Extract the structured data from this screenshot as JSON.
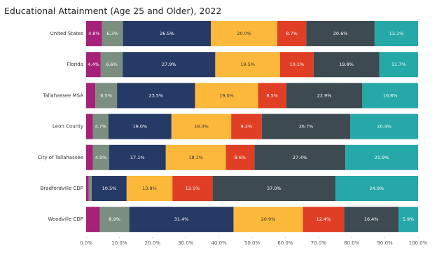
{
  "chart_data": {
    "type": "stacked-barh",
    "title": "Educational Attainment (Age 25 and Older), 2022",
    "categories": [
      "United States",
      "Florida",
      "Tallahassee MSA",
      "Leon County",
      "City of Tallahassee",
      "Bradfordville CDP",
      "Woodville CDP"
    ],
    "series": [
      {
        "color": "#a6217a",
        "values": [
          4.8,
          4.4,
          2.8,
          2.0,
          2.0,
          0.8,
          4.1
        ],
        "value_labels": [
          "4.8%",
          "4.4%",
          null,
          null,
          null,
          null,
          null
        ]
      },
      {
        "color": "#7b8f81",
        "values": [
          6.3,
          6.6,
          6.5,
          4.7,
          4.9,
          0.9,
          8.9
        ],
        "value_labels": [
          "6.3%",
          "6.6%",
          "6.5%",
          "4.7%",
          "4.9%",
          null,
          "8.9%"
        ]
      },
      {
        "color": "#263a66",
        "values": [
          26.5,
          27.9,
          23.5,
          19.0,
          17.1,
          10.5,
          31.4
        ],
        "value_labels": [
          "26.5%",
          "27.9%",
          "23.5%",
          "19.0%",
          "17.1%",
          "10.5%",
          "31.4%"
        ]
      },
      {
        "color": "#fbb83a",
        "values": [
          20.0,
          19.5,
          19.0,
          18.0,
          18.1,
          13.8,
          20.9
        ],
        "value_labels": [
          "20.0%",
          "19.5%",
          "19.0%",
          "18.0%",
          "18.1%",
          "13.8%",
          "20.9%"
        ]
      },
      {
        "color": "#e03f25",
        "values": [
          8.7,
          10.1,
          8.5,
          9.2,
          8.6,
          12.1,
          12.4
        ],
        "value_labels": [
          "8.7%",
          "10.1%",
          "8.5%",
          "9.2%",
          "8.6%",
          "12.1%",
          "12.4%"
        ]
      },
      {
        "color": "#3e4a52",
        "values": [
          20.6,
          19.8,
          22.9,
          26.7,
          27.4,
          37.0,
          16.4
        ],
        "value_labels": [
          "20.6%",
          "19.8%",
          "22.9%",
          "26.7%",
          "27.4%",
          "37.0%",
          "16.4%"
        ]
      },
      {
        "color": "#26a8a8",
        "values": [
          13.1,
          11.7,
          16.8,
          20.4,
          21.9,
          24.9,
          5.9
        ],
        "value_labels": [
          "13.1%",
          "11.7%",
          "16.8%",
          "20.4%",
          "21.9%",
          "24.9%",
          "5.9%"
        ]
      }
    ],
    "xlim": [
      0,
      100
    ],
    "xticks": [
      {
        "value": 0,
        "label": "0.0%"
      },
      {
        "value": 10,
        "label": "10.0%"
      },
      {
        "value": 20,
        "label": "20.0%"
      },
      {
        "value": 30,
        "label": "30.0%"
      },
      {
        "value": 40,
        "label": "40.0%"
      },
      {
        "value": 50,
        "label": "50.0%"
      },
      {
        "value": 60,
        "label": "60.0%"
      },
      {
        "value": 70,
        "label": "70.0%"
      },
      {
        "value": 80,
        "label": "80.0%"
      },
      {
        "value": 90,
        "label": "90.0%"
      },
      {
        "value": 100,
        "label": "100.0%"
      }
    ]
  }
}
